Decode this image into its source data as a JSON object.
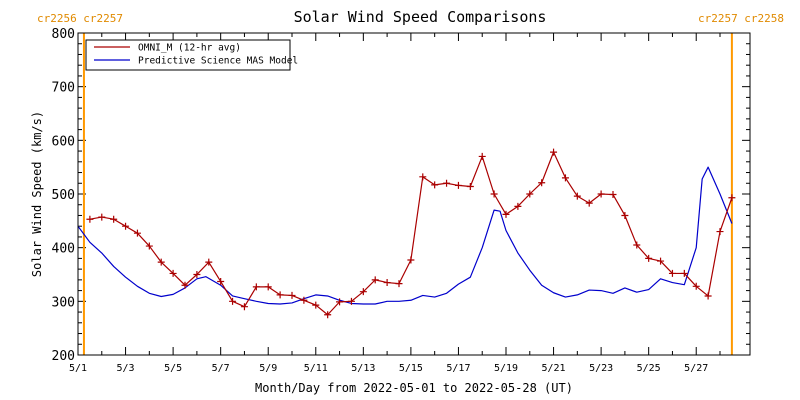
{
  "chart_data": {
    "type": "line",
    "title": "Solar Wind Speed Comparisons",
    "xlabel": "Month/Day from 2022-05-01 to 2022-05-28 (UT)",
    "ylabel": "Solar Wind Speed (km/s)",
    "xlim": [
      "2022-05-01",
      "2022-05-28"
    ],
    "ylim": [
      200,
      800
    ],
    "x_tick_labels": [
      "5/1",
      "5/3",
      "5/5",
      "5/7",
      "5/9",
      "5/11",
      "5/13",
      "5/15",
      "5/17",
      "5/19",
      "5/21",
      "5/23",
      "5/25",
      "5/27"
    ],
    "y_ticks": [
      200,
      300,
      400,
      500,
      600,
      700,
      800
    ],
    "legend_placement": "top-left",
    "grid": false,
    "carrington_left": "cr2256 cr2257",
    "carrington_right": "cr2257 cr2258",
    "carrington_boundaries": [
      "2022-05-01T06:00",
      "2022-05-28T12:00"
    ],
    "colors": {
      "omni": "#aa0000",
      "mas": "#0000cc",
      "boundary": "#ff9900",
      "carrington_text": "#e08a00"
    },
    "series": [
      {
        "name": "OMNI_M (12-hr avg)",
        "marker": "plus",
        "points": [
          [
            "2022-05-01T12:00",
            453
          ],
          [
            "2022-05-02T00:00",
            457
          ],
          [
            "2022-05-02T12:00",
            453
          ],
          [
            "2022-05-03T00:00",
            440
          ],
          [
            "2022-05-03T12:00",
            427
          ],
          [
            "2022-05-04T00:00",
            403
          ],
          [
            "2022-05-04T12:00",
            373
          ],
          [
            "2022-05-05T00:00",
            352
          ],
          [
            "2022-05-05T12:00",
            330
          ],
          [
            "2022-05-06T00:00",
            350
          ],
          [
            "2022-05-06T12:00",
            373
          ],
          [
            "2022-05-07T00:00",
            337
          ],
          [
            "2022-05-07T12:00",
            300
          ],
          [
            "2022-05-08T00:00",
            290
          ],
          [
            "2022-05-08T12:00",
            327
          ],
          [
            "2022-05-09T00:00",
            327
          ],
          [
            "2022-05-09T12:00",
            312
          ],
          [
            "2022-05-10T00:00",
            311
          ],
          [
            "2022-05-10T12:00",
            302
          ],
          [
            "2022-05-11T00:00",
            293
          ],
          [
            "2022-05-11T12:00",
            275
          ],
          [
            "2022-05-12T00:00",
            299
          ],
          [
            "2022-05-12T12:00",
            300
          ],
          [
            "2022-05-13T00:00",
            318
          ],
          [
            "2022-05-13T12:00",
            340
          ],
          [
            "2022-05-14T00:00",
            335
          ],
          [
            "2022-05-14T12:00",
            333
          ],
          [
            "2022-05-15T00:00",
            377
          ],
          [
            "2022-05-15T12:00",
            532
          ],
          [
            "2022-05-16T00:00",
            517
          ],
          [
            "2022-05-16T12:00",
            520
          ],
          [
            "2022-05-17T00:00",
            516
          ],
          [
            "2022-05-17T12:00",
            514
          ],
          [
            "2022-05-18T00:00",
            570
          ],
          [
            "2022-05-18T12:00",
            500
          ],
          [
            "2022-05-19T00:00",
            462
          ],
          [
            "2022-05-19T12:00",
            477
          ],
          [
            "2022-05-20T00:00",
            500
          ],
          [
            "2022-05-20T12:00",
            521
          ],
          [
            "2022-05-21T00:00",
            578
          ],
          [
            "2022-05-21T12:00",
            530
          ],
          [
            "2022-05-22T00:00",
            496
          ],
          [
            "2022-05-22T12:00",
            483
          ],
          [
            "2022-05-23T00:00",
            500
          ],
          [
            "2022-05-23T12:00",
            499
          ],
          [
            "2022-05-24T00:00",
            460
          ],
          [
            "2022-05-24T12:00",
            405
          ],
          [
            "2022-05-25T00:00",
            380
          ],
          [
            "2022-05-25T12:00",
            375
          ],
          [
            "2022-05-26T00:00",
            352
          ],
          [
            "2022-05-26T12:00",
            352
          ],
          [
            "2022-05-27T00:00",
            328
          ],
          [
            "2022-05-27T12:00",
            310
          ],
          [
            "2022-05-28T00:00",
            430
          ],
          [
            "2022-05-28T12:00",
            493
          ]
        ]
      },
      {
        "name": "Predictive Science MAS Model",
        "marker": "none",
        "points": [
          [
            "2022-05-01T00:00",
            440
          ],
          [
            "2022-05-01T12:00",
            410
          ],
          [
            "2022-05-02T00:00",
            390
          ],
          [
            "2022-05-02T12:00",
            365
          ],
          [
            "2022-05-03T00:00",
            345
          ],
          [
            "2022-05-03T12:00",
            328
          ],
          [
            "2022-05-04T00:00",
            315
          ],
          [
            "2022-05-04T12:00",
            309
          ],
          [
            "2022-05-05T00:00",
            313
          ],
          [
            "2022-05-05T12:00",
            325
          ],
          [
            "2022-05-06T00:00",
            342
          ],
          [
            "2022-05-06T09:00",
            346
          ],
          [
            "2022-05-07T00:00",
            330
          ],
          [
            "2022-05-07T12:00",
            310
          ],
          [
            "2022-05-08T00:00",
            305
          ],
          [
            "2022-05-08T12:00",
            300
          ],
          [
            "2022-05-09T00:00",
            296
          ],
          [
            "2022-05-09T12:00",
            295
          ],
          [
            "2022-05-10T00:00",
            297
          ],
          [
            "2022-05-10T12:00",
            305
          ],
          [
            "2022-05-11T00:00",
            312
          ],
          [
            "2022-05-11T12:00",
            310
          ],
          [
            "2022-05-12T00:00",
            302
          ],
          [
            "2022-05-12T12:00",
            296
          ],
          [
            "2022-05-13T00:00",
            295
          ],
          [
            "2022-05-13T12:00",
            295
          ],
          [
            "2022-05-14T00:00",
            300
          ],
          [
            "2022-05-14T12:00",
            300
          ],
          [
            "2022-05-15T00:00",
            302
          ],
          [
            "2022-05-15T12:00",
            311
          ],
          [
            "2022-05-16T00:00",
            308
          ],
          [
            "2022-05-16T12:00",
            315
          ],
          [
            "2022-05-17T00:00",
            332
          ],
          [
            "2022-05-17T12:00",
            345
          ],
          [
            "2022-05-18T00:00",
            400
          ],
          [
            "2022-05-18T12:00",
            470
          ],
          [
            "2022-05-18T18:00",
            468
          ],
          [
            "2022-05-19T00:00",
            432
          ],
          [
            "2022-05-19T12:00",
            390
          ],
          [
            "2022-05-20T00:00",
            358
          ],
          [
            "2022-05-20T12:00",
            330
          ],
          [
            "2022-05-21T00:00",
            316
          ],
          [
            "2022-05-21T12:00",
            308
          ],
          [
            "2022-05-22T00:00",
            312
          ],
          [
            "2022-05-22T12:00",
            321
          ],
          [
            "2022-05-23T00:00",
            320
          ],
          [
            "2022-05-23T12:00",
            315
          ],
          [
            "2022-05-24T00:00",
            325
          ],
          [
            "2022-05-24T12:00",
            317
          ],
          [
            "2022-05-25T00:00",
            322
          ],
          [
            "2022-05-25T12:00",
            342
          ],
          [
            "2022-05-26T00:00",
            335
          ],
          [
            "2022-05-26T12:00",
            331
          ],
          [
            "2022-05-27T00:00",
            400
          ],
          [
            "2022-05-27T06:00",
            528
          ],
          [
            "2022-05-27T12:00",
            550
          ],
          [
            "2022-05-28T00:00",
            500
          ],
          [
            "2022-05-28T12:00",
            445
          ]
        ]
      }
    ]
  }
}
